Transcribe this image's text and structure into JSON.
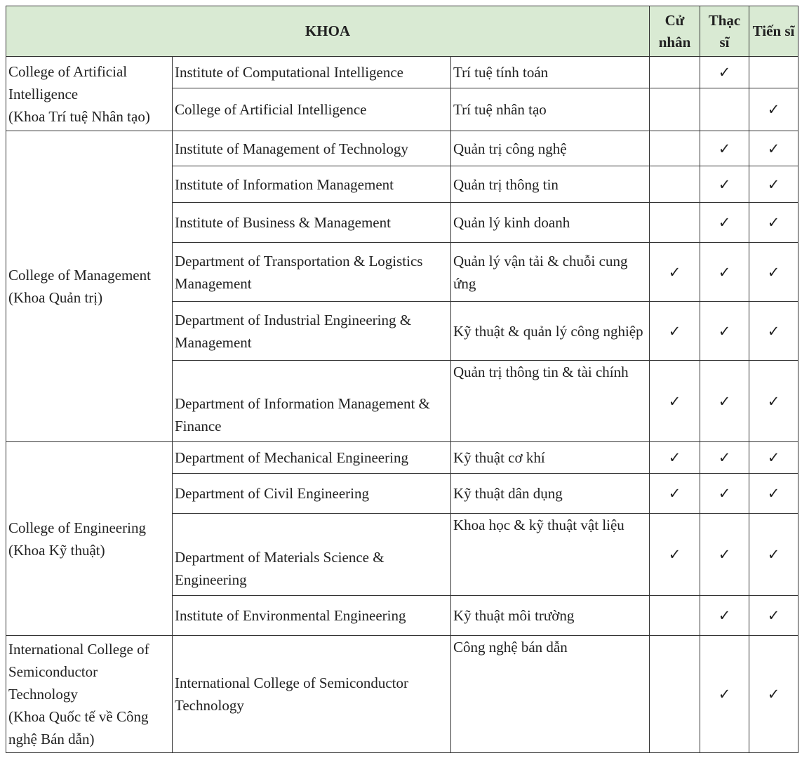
{
  "header": {
    "title": "KHOA",
    "bachelor": "Cử nhân",
    "master": "Thạc sĩ",
    "doctor": "Tiến sĩ"
  },
  "groups": [
    {
      "college": "College of Artificial Intelligence",
      "college_vi": "(Khoa Trí tuệ Nhân tạo)",
      "programs": [
        {
          "name": "Institute of Computational Intelligence",
          "name_vi": "Trí tuệ tính toán",
          "bachelor": null,
          "master": "✓",
          "doctor": null
        },
        {
          "name": "College of Artificial Intelligence",
          "name_vi": "Trí tuệ nhân tạo",
          "bachelor": null,
          "master": null,
          "doctor": "✓"
        }
      ]
    },
    {
      "college": "College of Management",
      "college_vi": "(Khoa Quản trị)",
      "programs": [
        {
          "name": "Institute of Management of Technology",
          "name_vi": "Quản trị công nghệ",
          "bachelor": null,
          "master": "✓",
          "doctor": "✓"
        },
        {
          "name": "Institute of Information Management",
          "name_vi": "Quản trị thông tin",
          "bachelor": null,
          "master": "✓",
          "doctor": "✓"
        },
        {
          "name": "Institute of Business & Management",
          "name_vi": "Quản lý kinh doanh",
          "bachelor": null,
          "master": "✓",
          "doctor": "✓"
        },
        {
          "name": "Department of Transportation & Logistics Management",
          "name_vi": "Quản lý vận tải & chuỗi cung ứng",
          "bachelor": "✓",
          "master": "✓",
          "doctor": "✓"
        },
        {
          "name": "Department of Industrial Engineering & Management",
          "name_vi": "Kỹ thuật & quản lý công nghiệp",
          "bachelor": "✓",
          "master": "✓",
          "doctor": "✓"
        },
        {
          "name": "Department of Information Management & Finance",
          "name_vi": "Quản trị thông tin & tài chính",
          "bachelor": "✓",
          "master": "✓",
          "doctor": "✓"
        }
      ]
    },
    {
      "college": "College of Engineering",
      "college_vi": "(Khoa Kỹ thuật)",
      "programs": [
        {
          "name": "Department of Mechanical Engineering",
          "name_vi": "Kỹ thuật cơ khí",
          "bachelor": "✓",
          "master": "✓",
          "doctor": "✓"
        },
        {
          "name": "Department of Civil Engineering",
          "name_vi": "Kỹ thuật dân dụng",
          "bachelor": "✓",
          "master": "✓",
          "doctor": "✓"
        },
        {
          "name": "Department of Materials Science & Engineering",
          "name_vi": "Khoa học & kỹ thuật vật liệu",
          "bachelor": "✓",
          "master": "✓",
          "doctor": "✓"
        },
        {
          "name": "Institute of Environmental Engineering",
          "name_vi": "Kỹ thuật môi trường",
          "bachelor": null,
          "master": "✓",
          "doctor": "✓"
        }
      ]
    },
    {
      "college": "International College of Semiconductor Technology",
      "college_vi": "(Khoa Quốc tế về Công nghệ Bán dẫn)",
      "programs": [
        {
          "name": "International College of Semiconductor Technology",
          "name_vi": "Công nghệ bán dẫn",
          "bachelor": null,
          "master": "✓",
          "doctor": "✓"
        }
      ]
    }
  ]
}
